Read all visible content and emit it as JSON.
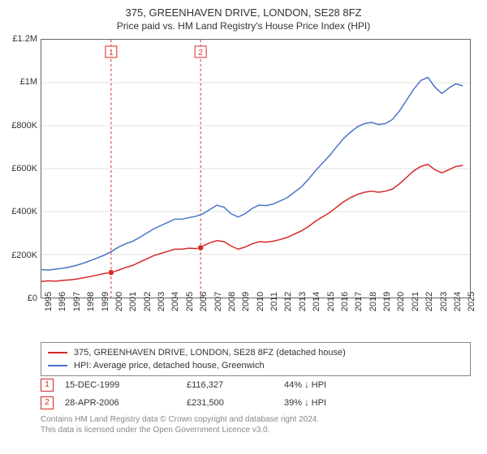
{
  "title": "375, GREENHAVEN DRIVE, LONDON, SE28 8FZ",
  "subtitle": "Price paid vs. HM Land Registry's House Price Index (HPI)",
  "chart": {
    "type": "line",
    "background_color": "#ffffff",
    "grid_color": "#e0e0e0",
    "border_color": "#666666",
    "label_fontsize": 11,
    "title_fontsize": 13,
    "x": {
      "min": 1995,
      "max": 2025.5,
      "ticks": [
        1995,
        1996,
        1997,
        1998,
        1999,
        2000,
        2001,
        2002,
        2003,
        2004,
        2005,
        2006,
        2007,
        2008,
        2009,
        2010,
        2011,
        2012,
        2013,
        2014,
        2015,
        2016,
        2017,
        2018,
        2019,
        2020,
        2021,
        2022,
        2023,
        2024,
        2025
      ]
    },
    "y": {
      "min": 0,
      "max": 1200000,
      "ticks": [
        {
          "v": 0,
          "label": "£0"
        },
        {
          "v": 200000,
          "label": "£200K"
        },
        {
          "v": 400000,
          "label": "£400K"
        },
        {
          "v": 600000,
          "label": "£600K"
        },
        {
          "v": 800000,
          "label": "£800K"
        },
        {
          "v": 1000000,
          "label": "£1M"
        },
        {
          "v": 1200000,
          "label": "£1.2M"
        }
      ]
    },
    "series": [
      {
        "name": "375, GREENHAVEN DRIVE, LONDON, SE28 8FZ (detached house)",
        "color": "#d62728",
        "line_width": 1.5,
        "data": [
          [
            1995.0,
            75000
          ],
          [
            1995.5,
            78000
          ],
          [
            1996.0,
            76000
          ],
          [
            1996.5,
            80000
          ],
          [
            1997.0,
            82000
          ],
          [
            1997.5,
            86000
          ],
          [
            1998.0,
            92000
          ],
          [
            1998.5,
            98000
          ],
          [
            1999.0,
            105000
          ],
          [
            1999.5,
            112000
          ],
          [
            1999.96,
            116327
          ],
          [
            2000.5,
            128000
          ],
          [
            2001.0,
            140000
          ],
          [
            2001.5,
            150000
          ],
          [
            2002.0,
            165000
          ],
          [
            2002.5,
            180000
          ],
          [
            2003.0,
            195000
          ],
          [
            2003.5,
            205000
          ],
          [
            2004.0,
            215000
          ],
          [
            2004.5,
            225000
          ],
          [
            2005.0,
            225000
          ],
          [
            2005.5,
            230000
          ],
          [
            2006.0,
            228000
          ],
          [
            2006.33,
            231500
          ],
          [
            2006.5,
            240000
          ],
          [
            2007.0,
            255000
          ],
          [
            2007.5,
            265000
          ],
          [
            2008.0,
            260000
          ],
          [
            2008.5,
            240000
          ],
          [
            2009.0,
            225000
          ],
          [
            2009.5,
            235000
          ],
          [
            2010.0,
            250000
          ],
          [
            2010.5,
            260000
          ],
          [
            2011.0,
            258000
          ],
          [
            2011.5,
            262000
          ],
          [
            2012.0,
            270000
          ],
          [
            2012.5,
            280000
          ],
          [
            2013.0,
            295000
          ],
          [
            2013.5,
            310000
          ],
          [
            2014.0,
            330000
          ],
          [
            2014.5,
            355000
          ],
          [
            2015.0,
            375000
          ],
          [
            2015.5,
            395000
          ],
          [
            2016.0,
            420000
          ],
          [
            2016.5,
            445000
          ],
          [
            2017.0,
            465000
          ],
          [
            2017.5,
            480000
          ],
          [
            2018.0,
            490000
          ],
          [
            2018.5,
            495000
          ],
          [
            2019.0,
            490000
          ],
          [
            2019.5,
            495000
          ],
          [
            2020.0,
            505000
          ],
          [
            2020.5,
            530000
          ],
          [
            2021.0,
            560000
          ],
          [
            2021.5,
            590000
          ],
          [
            2022.0,
            610000
          ],
          [
            2022.5,
            620000
          ],
          [
            2023.0,
            595000
          ],
          [
            2023.5,
            580000
          ],
          [
            2024.0,
            595000
          ],
          [
            2024.5,
            610000
          ],
          [
            2025.0,
            615000
          ]
        ]
      },
      {
        "name": "HPI: Average price, detached house, Greenwich",
        "color": "#4a73c8",
        "line_width": 1.5,
        "data": [
          [
            1995.0,
            130000
          ],
          [
            1995.5,
            128000
          ],
          [
            1996.0,
            132000
          ],
          [
            1996.5,
            136000
          ],
          [
            1997.0,
            142000
          ],
          [
            1997.5,
            150000
          ],
          [
            1998.0,
            160000
          ],
          [
            1998.5,
            172000
          ],
          [
            1999.0,
            185000
          ],
          [
            1999.5,
            198000
          ],
          [
            2000.0,
            215000
          ],
          [
            2000.5,
            235000
          ],
          [
            2001.0,
            250000
          ],
          [
            2001.5,
            262000
          ],
          [
            2002.0,
            280000
          ],
          [
            2002.5,
            300000
          ],
          [
            2003.0,
            320000
          ],
          [
            2003.5,
            335000
          ],
          [
            2004.0,
            350000
          ],
          [
            2004.5,
            365000
          ],
          [
            2005.0,
            365000
          ],
          [
            2005.5,
            372000
          ],
          [
            2006.0,
            378000
          ],
          [
            2006.5,
            390000
          ],
          [
            2007.0,
            410000
          ],
          [
            2007.5,
            430000
          ],
          [
            2008.0,
            420000
          ],
          [
            2008.5,
            390000
          ],
          [
            2009.0,
            375000
          ],
          [
            2009.5,
            390000
          ],
          [
            2010.0,
            415000
          ],
          [
            2010.5,
            430000
          ],
          [
            2011.0,
            428000
          ],
          [
            2011.5,
            435000
          ],
          [
            2012.0,
            450000
          ],
          [
            2012.5,
            465000
          ],
          [
            2013.0,
            490000
          ],
          [
            2013.5,
            515000
          ],
          [
            2014.0,
            550000
          ],
          [
            2014.5,
            590000
          ],
          [
            2015.0,
            625000
          ],
          [
            2015.5,
            660000
          ],
          [
            2016.0,
            700000
          ],
          [
            2016.5,
            740000
          ],
          [
            2017.0,
            770000
          ],
          [
            2017.5,
            795000
          ],
          [
            2018.0,
            810000
          ],
          [
            2018.5,
            815000
          ],
          [
            2019.0,
            805000
          ],
          [
            2019.5,
            810000
          ],
          [
            2020.0,
            830000
          ],
          [
            2020.5,
            870000
          ],
          [
            2021.0,
            920000
          ],
          [
            2021.5,
            970000
          ],
          [
            2022.0,
            1010000
          ],
          [
            2022.5,
            1025000
          ],
          [
            2023.0,
            980000
          ],
          [
            2023.5,
            950000
          ],
          [
            2024.0,
            975000
          ],
          [
            2024.5,
            995000
          ],
          [
            2025.0,
            985000
          ]
        ]
      }
    ],
    "sale_markers": [
      {
        "n": 1,
        "x": 1999.96,
        "y": 116327,
        "color": "#d62728"
      },
      {
        "n": 2,
        "x": 2006.33,
        "y": 231500,
        "color": "#d62728"
      }
    ]
  },
  "legend": {
    "items": [
      {
        "label": "375, GREENHAVEN DRIVE, LONDON, SE28 8FZ (detached house)",
        "color": "#d62728"
      },
      {
        "label": "HPI: Average price, detached house, Greenwich",
        "color": "#4a73c8"
      }
    ]
  },
  "sales": [
    {
      "n": "1",
      "date": "15-DEC-1999",
      "price": "£116,327",
      "diff": "44% ↓ HPI",
      "color": "#d62728"
    },
    {
      "n": "2",
      "date": "28-APR-2006",
      "price": "£231,500",
      "diff": "39% ↓ HPI",
      "color": "#d62728"
    }
  ],
  "footer": {
    "line1": "Contains HM Land Registry data © Crown copyright and database right 2024.",
    "line2": "This data is licensed under the Open Government Licence v3.0."
  }
}
